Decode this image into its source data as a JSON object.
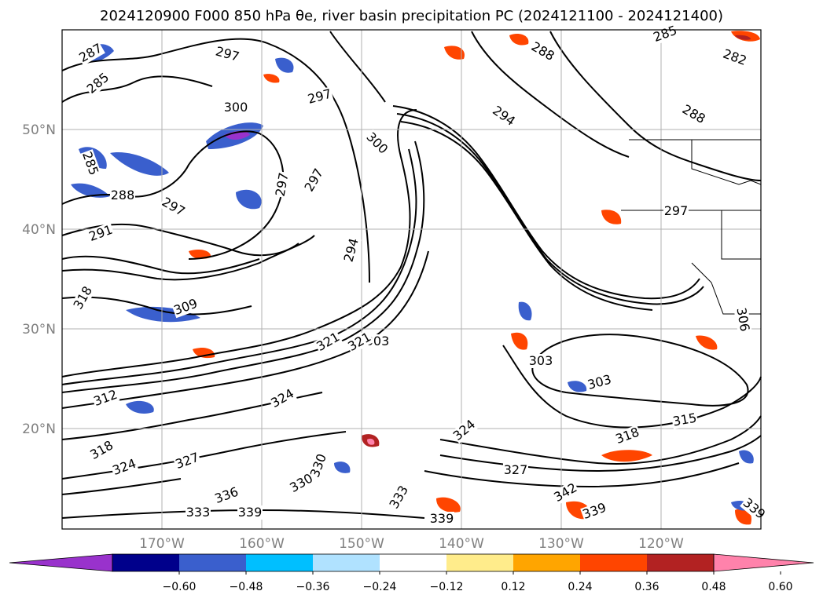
{
  "title": "2024120900 F000 850 hPa θe, river basin precipitation PC (2024121100 - 2024121400)",
  "lat_labels": [
    "50°N",
    "40°N",
    "30°N",
    "20°N"
  ],
  "lon_labels": [
    "170°W",
    "160°W",
    "150°W",
    "140°W",
    "130°W",
    "120°W"
  ],
  "colorbar": {
    "ticks": [
      "−0.60",
      "−0.48",
      "−0.36",
      "−0.24",
      "−0.12",
      "0.12",
      "0.24",
      "0.36",
      "0.48",
      "0.60"
    ],
    "colors": [
      "#9932cc",
      "#00008b",
      "#3a5fcd",
      "#00bfff",
      "#b0e2ff",
      "#ffffff",
      "#ffec8b",
      "#ffa500",
      "#ff4500",
      "#b22222",
      "#ff82ab"
    ]
  },
  "contour_labels": [
    "287",
    "285",
    "297",
    "285",
    "282",
    "297",
    "300",
    "288",
    "288",
    "294",
    "300",
    "297",
    "285",
    "288",
    "297",
    "291",
    "294",
    "297",
    "303",
    "297",
    "318",
    "309",
    "303",
    "303",
    "321",
    "324",
    "318",
    "315",
    "318",
    "324",
    "327",
    "330",
    "333",
    "330",
    "336",
    "339",
    "339",
    "342",
    "339",
    "339",
    "333",
    "321",
    "312",
    "324",
    "327",
    "306"
  ]
}
